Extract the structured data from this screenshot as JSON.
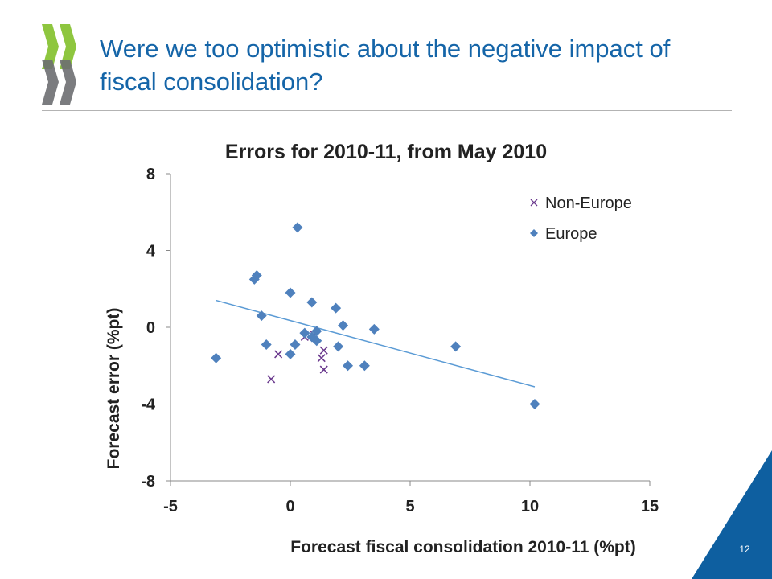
{
  "slide": {
    "title": "Were we too optimistic about the negative impact of fiscal consolidation?",
    "page_number": "12"
  },
  "colors": {
    "title_text": "#1565a8",
    "logo_green": "#8ec63f",
    "logo_gray": "#6d6e71",
    "corner_blue": "#0e5fa0",
    "europe_marker": "#4f81bd",
    "non_europe_marker": "#6b3a8e",
    "trendline": "#5b9bd5"
  },
  "chart_data": {
    "type": "scatter",
    "title": "Errors for 2010-11, from May 2010",
    "xlabel": "Forecast fiscal consolidation 2010-11 (%pt)",
    "ylabel": "Forecast error (%pt)",
    "xlim": [
      -5,
      15
    ],
    "ylim": [
      -8,
      8
    ],
    "x_ticks": [
      "-5",
      "0",
      "5",
      "10",
      "15"
    ],
    "y_ticks": [
      "8",
      "4",
      "0",
      "-4",
      "-8"
    ],
    "grid": false,
    "legend_position": "top-right",
    "series": [
      {
        "name": "Non-Europe",
        "marker": "x",
        "points": [
          [
            -0.8,
            -2.7
          ],
          [
            -0.5,
            -1.4
          ],
          [
            0.6,
            -0.5
          ],
          [
            1.3,
            -1.6
          ],
          [
            1.4,
            -1.2
          ],
          [
            1.4,
            -2.2
          ],
          [
            1.0,
            -0.4
          ]
        ]
      },
      {
        "name": "Europe",
        "marker": "diamond",
        "points": [
          [
            -3.1,
            -1.6
          ],
          [
            -1.5,
            2.5
          ],
          [
            -1.4,
            2.7
          ],
          [
            -1.2,
            0.6
          ],
          [
            -1.0,
            -0.9
          ],
          [
            0.0,
            1.8
          ],
          [
            0.0,
            -1.4
          ],
          [
            0.2,
            -0.9
          ],
          [
            0.3,
            5.2
          ],
          [
            0.6,
            -0.3
          ],
          [
            0.9,
            1.3
          ],
          [
            0.9,
            -0.5
          ],
          [
            1.1,
            -0.2
          ],
          [
            1.1,
            -0.7
          ],
          [
            1.9,
            1.0
          ],
          [
            2.0,
            -1.0
          ],
          [
            2.2,
            0.1
          ],
          [
            2.4,
            -2.0
          ],
          [
            3.1,
            -2.0
          ],
          [
            3.5,
            -0.1
          ],
          [
            6.9,
            -1.0
          ],
          [
            10.2,
            -4.0
          ]
        ]
      }
    ],
    "trendline": {
      "from": [
        -3.1,
        1.4
      ],
      "to": [
        10.2,
        -3.1
      ]
    }
  }
}
